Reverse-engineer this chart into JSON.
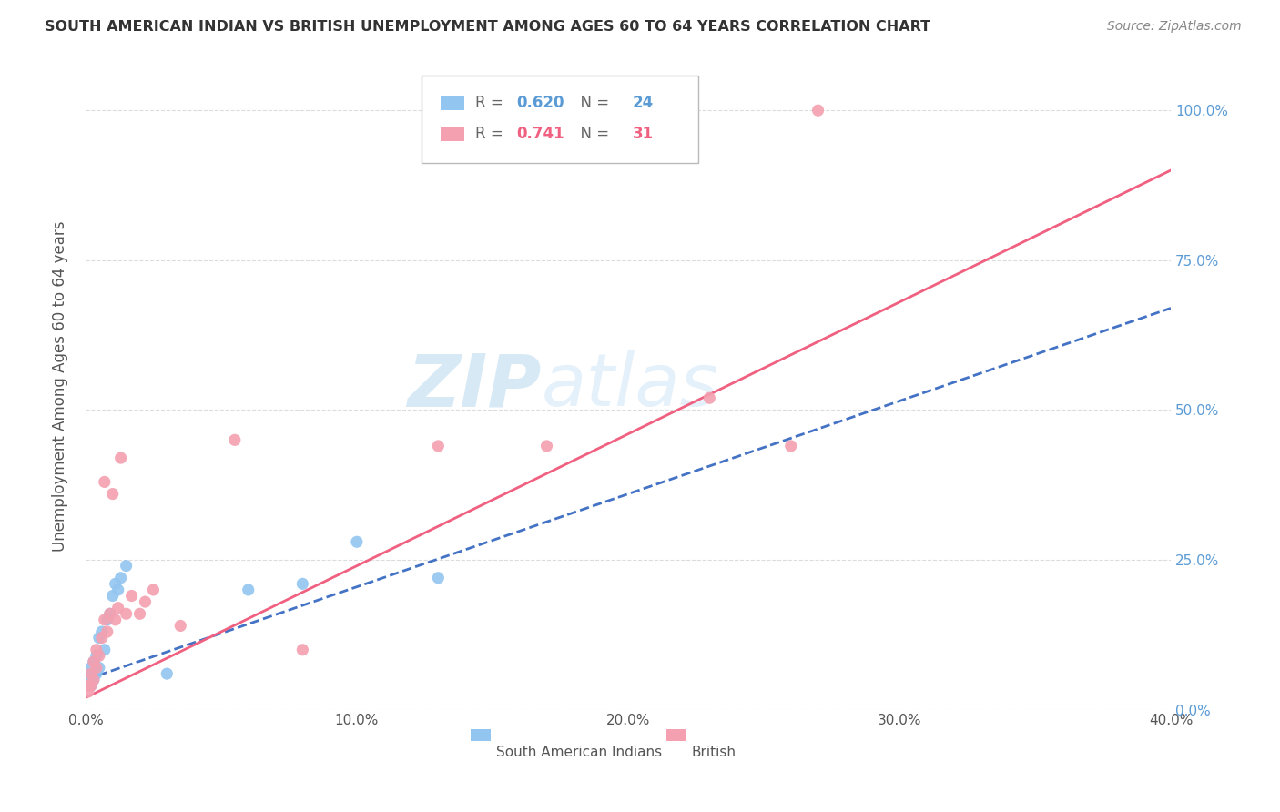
{
  "title": "SOUTH AMERICAN INDIAN VS BRITISH UNEMPLOYMENT AMONG AGES 60 TO 64 YEARS CORRELATION CHART",
  "source": "Source: ZipAtlas.com",
  "ylabel": "Unemployment Among Ages 60 to 64 years",
  "xlabel_ticks": [
    "0.0%",
    "10.0%",
    "20.0%",
    "30.0%",
    "40.0%"
  ],
  "ylabel_ticks": [
    "0.0%",
    "25.0%",
    "50.0%",
    "75.0%",
    "100.0%"
  ],
  "xlim": [
    0.0,
    0.4
  ],
  "ylim": [
    0.0,
    1.08
  ],
  "watermark_zip": "ZIP",
  "watermark_atlas": "atlas",
  "legend_blue_R": "0.620",
  "legend_blue_N": "24",
  "legend_pink_R": "0.741",
  "legend_pink_N": "31",
  "blue_color": "#92C5F0",
  "pink_color": "#F4A0B0",
  "blue_line_color": "#4472C4",
  "pink_line_color": "#F06080",
  "blue_line_intercept": 0.05,
  "blue_line_slope": 1.55,
  "pink_line_intercept": 0.02,
  "pink_line_slope": 2.2,
  "blue_scatter": [
    [
      0.001,
      0.05
    ],
    [
      0.001,
      0.06
    ],
    [
      0.002,
      0.04
    ],
    [
      0.002,
      0.07
    ],
    [
      0.003,
      0.05
    ],
    [
      0.003,
      0.08
    ],
    [
      0.004,
      0.06
    ],
    [
      0.004,
      0.09
    ],
    [
      0.005,
      0.07
    ],
    [
      0.005,
      0.12
    ],
    [
      0.006,
      0.13
    ],
    [
      0.007,
      0.1
    ],
    [
      0.008,
      0.15
    ],
    [
      0.009,
      0.16
    ],
    [
      0.01,
      0.19
    ],
    [
      0.011,
      0.21
    ],
    [
      0.012,
      0.2
    ],
    [
      0.013,
      0.22
    ],
    [
      0.015,
      0.24
    ],
    [
      0.03,
      0.06
    ],
    [
      0.06,
      0.2
    ],
    [
      0.08,
      0.21
    ],
    [
      0.1,
      0.28
    ],
    [
      0.13,
      0.22
    ]
  ],
  "pink_scatter": [
    [
      0.001,
      0.03
    ],
    [
      0.001,
      0.04
    ],
    [
      0.002,
      0.04
    ],
    [
      0.002,
      0.06
    ],
    [
      0.003,
      0.05
    ],
    [
      0.003,
      0.08
    ],
    [
      0.004,
      0.07
    ],
    [
      0.004,
      0.1
    ],
    [
      0.005,
      0.09
    ],
    [
      0.006,
      0.12
    ],
    [
      0.007,
      0.15
    ],
    [
      0.007,
      0.38
    ],
    [
      0.008,
      0.13
    ],
    [
      0.009,
      0.16
    ],
    [
      0.01,
      0.36
    ],
    [
      0.011,
      0.15
    ],
    [
      0.012,
      0.17
    ],
    [
      0.013,
      0.42
    ],
    [
      0.015,
      0.16
    ],
    [
      0.017,
      0.19
    ],
    [
      0.02,
      0.16
    ],
    [
      0.022,
      0.18
    ],
    [
      0.025,
      0.2
    ],
    [
      0.035,
      0.14
    ],
    [
      0.055,
      0.45
    ],
    [
      0.08,
      0.1
    ],
    [
      0.13,
      0.44
    ],
    [
      0.17,
      0.44
    ],
    [
      0.23,
      0.52
    ],
    [
      0.26,
      0.44
    ],
    [
      0.27,
      1.0
    ]
  ],
  "grid_color": "#DCDCDC",
  "background_color": "#FFFFFF",
  "title_color": "#333333",
  "source_color": "#888888",
  "ylabel_color": "#555555",
  "tick_color": "#555555",
  "right_tick_color": "#5B9BD5"
}
